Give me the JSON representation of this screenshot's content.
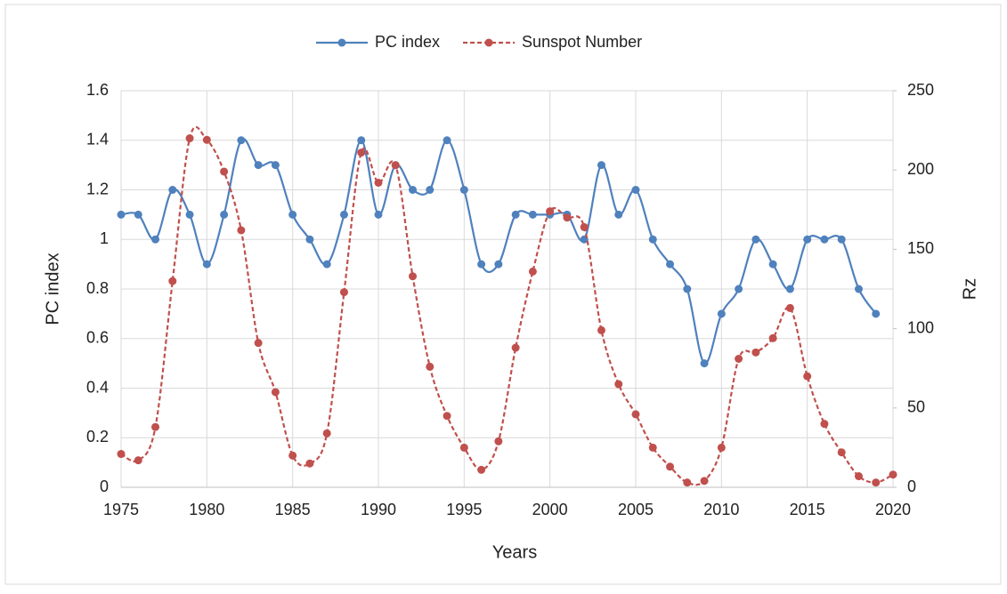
{
  "chart_data": {
    "type": "line",
    "x_label": "Years",
    "y_label": "PC index",
    "y2_label": "Rz",
    "x": [
      1975,
      1976,
      1977,
      1978,
      1979,
      1980,
      1981,
      1982,
      1983,
      1984,
      1985,
      1986,
      1987,
      1988,
      1989,
      1990,
      1991,
      1992,
      1993,
      1994,
      1995,
      1996,
      1997,
      1998,
      1999,
      2000,
      2001,
      2002,
      2003,
      2004,
      2005,
      2006,
      2007,
      2008,
      2009,
      2010,
      2011,
      2012,
      2013,
      2014,
      2015,
      2016,
      2017,
      2018,
      2019,
      2020
    ],
    "series": [
      {
        "name": "PC index",
        "color": "#4f81bd",
        "dashed": false,
        "values": [
          1.1,
          1.1,
          1.0,
          1.2,
          1.1,
          0.9,
          1.1,
          1.4,
          1.3,
          1.3,
          1.1,
          1.0,
          0.9,
          1.1,
          1.4,
          1.1,
          1.3,
          1.2,
          1.2,
          1.4,
          1.2,
          0.9,
          0.9,
          1.1,
          1.1,
          1.1,
          1.1,
          1.0,
          1.3,
          1.1,
          1.2,
          1.0,
          0.9,
          0.8,
          0.5,
          0.7,
          0.8,
          1.0,
          0.9,
          0.8,
          1.0,
          1.0,
          1.0,
          0.8,
          0.7,
          null
        ]
      },
      {
        "name": "Sunspot Number",
        "color": "#c0504d",
        "dashed": true,
        "axis": "y2",
        "values": [
          21,
          17,
          38,
          130,
          220,
          219,
          199,
          162,
          91,
          60,
          20,
          15,
          34,
          123,
          211,
          192,
          203,
          133,
          76,
          45,
          25,
          11,
          29,
          88,
          136,
          174,
          170,
          164,
          99,
          65,
          46,
          25,
          13,
          3,
          4,
          25,
          81,
          85,
          94,
          113,
          70,
          40,
          22,
          7,
          3,
          8
        ]
      }
    ],
    "xlim": [
      1975,
      2020
    ],
    "xticks": [
      1975,
      1980,
      1985,
      1990,
      1995,
      2000,
      2005,
      2010,
      2015,
      2020
    ],
    "ylim": [
      0,
      1.6
    ],
    "yticks": [
      0,
      0.2,
      0.4,
      0.6,
      0.8,
      1,
      1.2,
      1.4,
      1.6
    ],
    "y2lim": [
      0,
      250
    ],
    "y2ticks": [
      0,
      50,
      100,
      150,
      200,
      250
    ],
    "grid": true,
    "legend": "top",
    "smooth": true
  }
}
